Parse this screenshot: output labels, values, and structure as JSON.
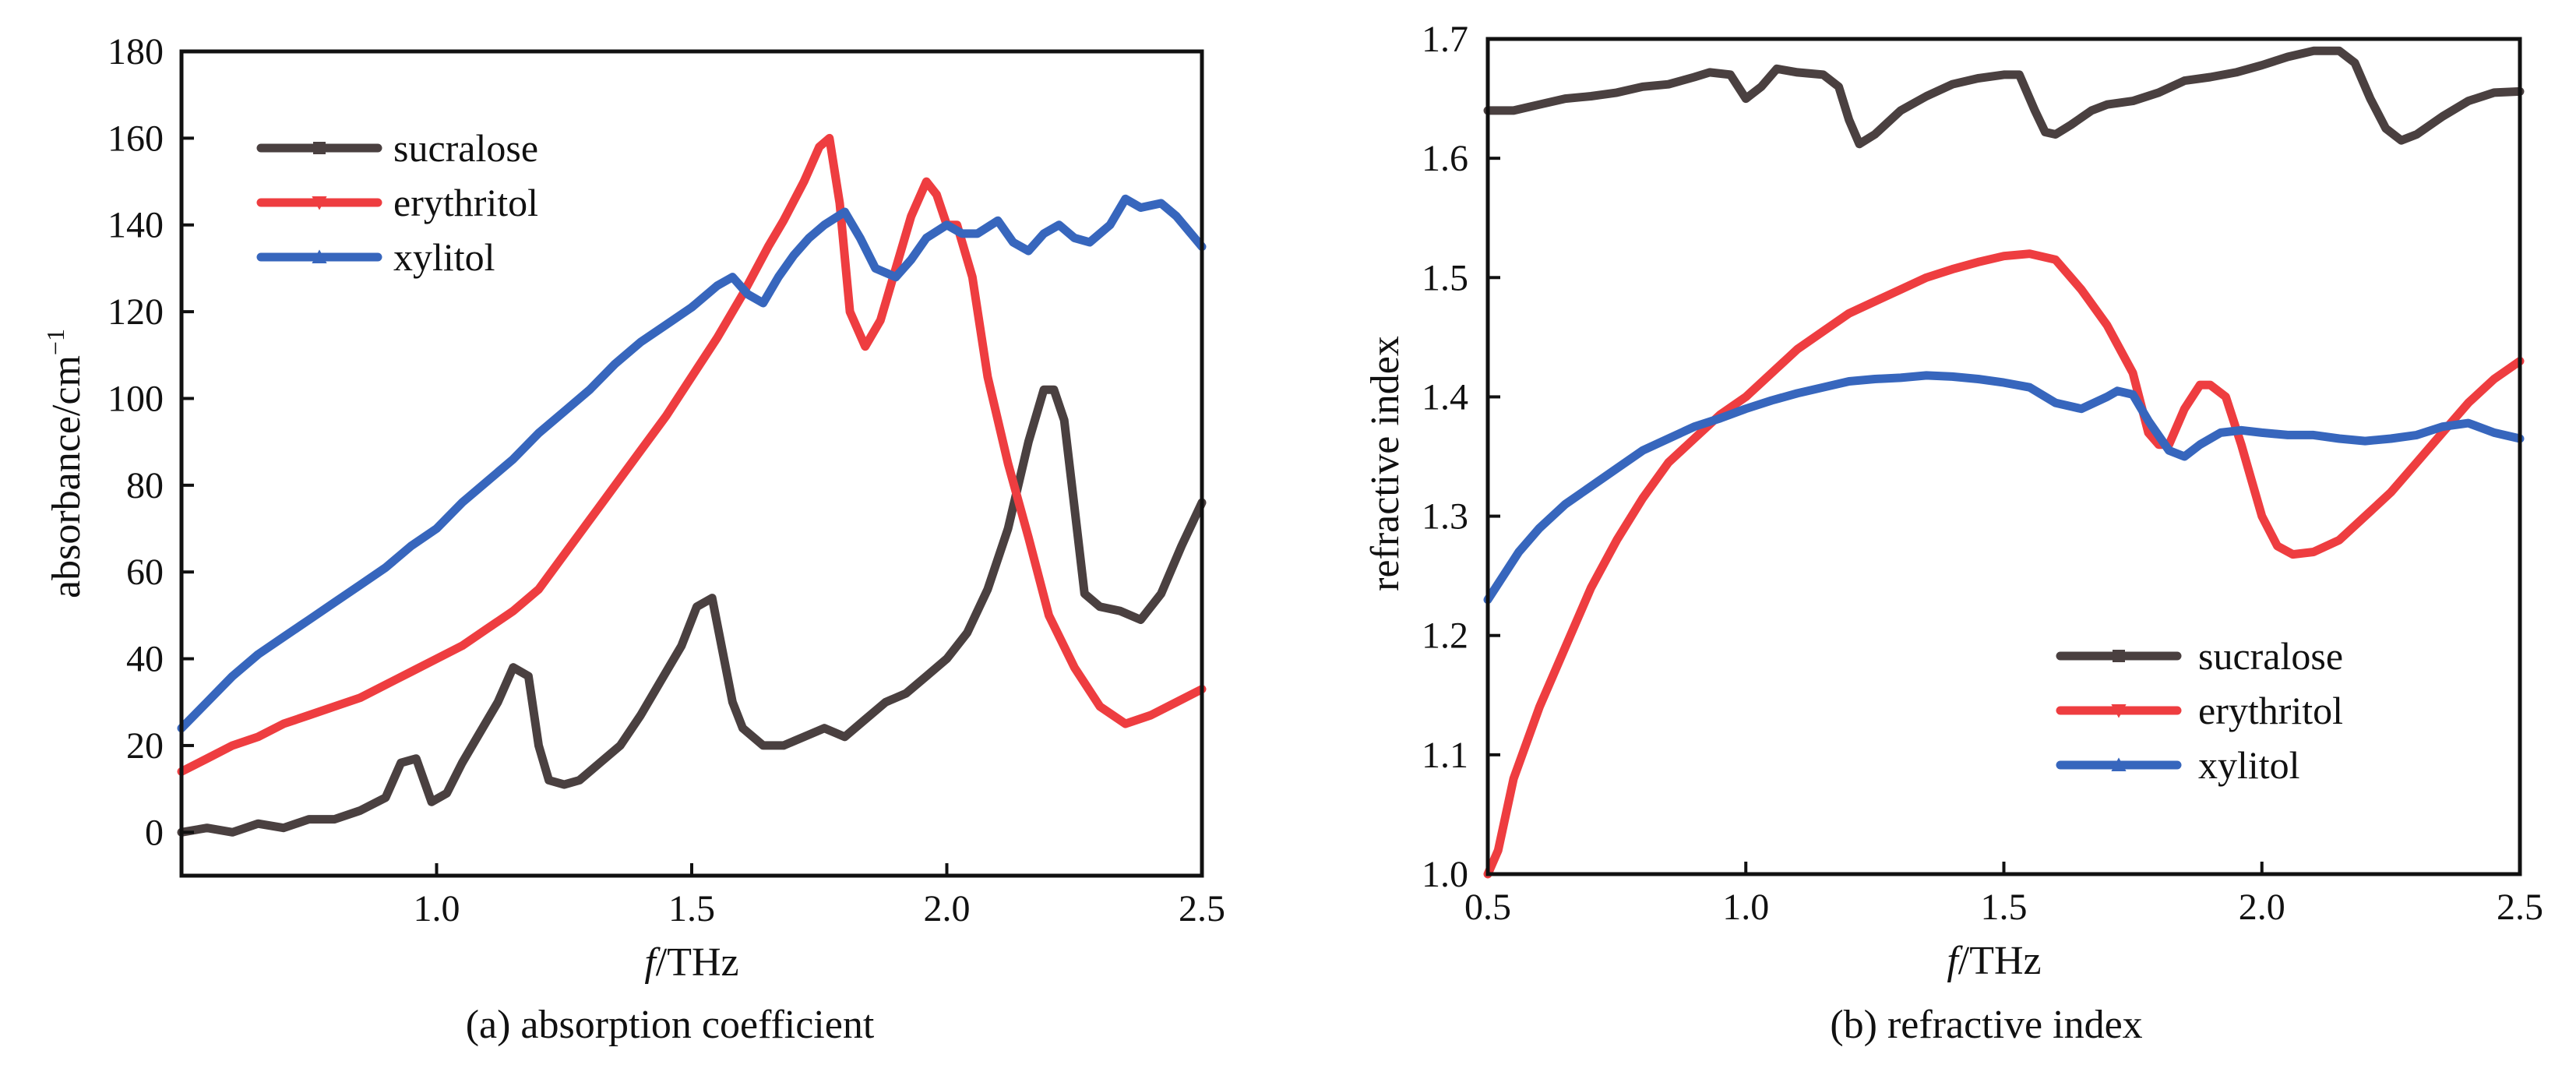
{
  "chart_data": [
    {
      "type": "line",
      "caption": "(a) absorption coefficient",
      "xlabel_italic": "f",
      "xlabel_rest": "/THz",
      "ylabel": "absorbance/cm",
      "ylabel_sup": "−1",
      "xlim": [
        0.5,
        2.5
      ],
      "ylim": [
        -10,
        180
      ],
      "xticks": [
        1.0,
        1.5,
        2.0,
        2.5
      ],
      "xtick_labels": [
        "1.0",
        "1.5",
        "2.0",
        "2.5"
      ],
      "yticks": [
        0,
        20,
        40,
        60,
        80,
        100,
        120,
        140,
        160,
        180
      ],
      "ytick_labels": [
        "0",
        "20",
        "40",
        "60",
        "80",
        "100",
        "120",
        "140",
        "160",
        "180"
      ],
      "legend_position": "top-left",
      "series": [
        {
          "name": "sucralose",
          "color": "#4a4040",
          "marker": "square",
          "x": [
            0.5,
            0.55,
            0.6,
            0.65,
            0.7,
            0.75,
            0.8,
            0.85,
            0.9,
            0.93,
            0.96,
            0.99,
            1.02,
            1.05,
            1.08,
            1.12,
            1.15,
            1.18,
            1.2,
            1.22,
            1.25,
            1.28,
            1.32,
            1.36,
            1.4,
            1.44,
            1.48,
            1.51,
            1.54,
            1.56,
            1.58,
            1.6,
            1.64,
            1.68,
            1.72,
            1.76,
            1.8,
            1.84,
            1.88,
            1.92,
            1.96,
            2.0,
            2.04,
            2.08,
            2.12,
            2.16,
            2.19,
            2.21,
            2.23,
            2.25,
            2.27,
            2.3,
            2.34,
            2.38,
            2.42,
            2.46,
            2.5
          ],
          "y": [
            0,
            1,
            0,
            2,
            1,
            3,
            3,
            5,
            8,
            16,
            17,
            7,
            9,
            16,
            22,
            30,
            38,
            36,
            20,
            12,
            11,
            12,
            16,
            20,
            27,
            35,
            43,
            52,
            54,
            42,
            30,
            24,
            20,
            20,
            22,
            24,
            22,
            26,
            30,
            32,
            36,
            40,
            46,
            56,
            70,
            90,
            102,
            102,
            95,
            75,
            55,
            52,
            51,
            49,
            55,
            66,
            76
          ]
        },
        {
          "name": "erythritol",
          "color": "#ee3d40",
          "marker": "triangle-down",
          "x": [
            0.5,
            0.55,
            0.6,
            0.65,
            0.7,
            0.75,
            0.8,
            0.85,
            0.9,
            0.95,
            1.0,
            1.05,
            1.1,
            1.15,
            1.2,
            1.25,
            1.3,
            1.35,
            1.4,
            1.45,
            1.5,
            1.55,
            1.6,
            1.65,
            1.68,
            1.72,
            1.75,
            1.77,
            1.79,
            1.81,
            1.84,
            1.87,
            1.9,
            1.93,
            1.96,
            1.98,
            2.0,
            2.02,
            2.05,
            2.08,
            2.12,
            2.16,
            2.2,
            2.25,
            2.3,
            2.35,
            2.4,
            2.45,
            2.5
          ],
          "y": [
            14,
            17,
            20,
            22,
            25,
            27,
            29,
            31,
            34,
            37,
            40,
            43,
            47,
            51,
            56,
            64,
            72,
            80,
            88,
            96,
            105,
            114,
            124,
            135,
            141,
            150,
            158,
            160,
            145,
            120,
            112,
            118,
            130,
            142,
            150,
            147,
            140,
            140,
            128,
            105,
            85,
            68,
            50,
            38,
            29,
            25,
            27,
            30,
            33
          ]
        },
        {
          "name": "xylitol",
          "color": "#3766bd",
          "marker": "triangle-up",
          "x": [
            0.5,
            0.55,
            0.6,
            0.65,
            0.7,
            0.75,
            0.8,
            0.85,
            0.9,
            0.95,
            1.0,
            1.05,
            1.1,
            1.15,
            1.2,
            1.25,
            1.3,
            1.35,
            1.4,
            1.45,
            1.5,
            1.55,
            1.58,
            1.61,
            1.64,
            1.67,
            1.7,
            1.73,
            1.76,
            1.8,
            1.83,
            1.86,
            1.9,
            1.93,
            1.96,
            2.0,
            2.03,
            2.06,
            2.1,
            2.13,
            2.16,
            2.19,
            2.22,
            2.25,
            2.28,
            2.32,
            2.35,
            2.38,
            2.42,
            2.45,
            2.5
          ],
          "y": [
            24,
            30,
            36,
            41,
            45,
            49,
            53,
            57,
            61,
            66,
            70,
            76,
            81,
            86,
            92,
            97,
            102,
            108,
            113,
            117,
            121,
            126,
            128,
            124,
            122,
            128,
            133,
            137,
            140,
            143,
            137,
            130,
            128,
            132,
            137,
            140,
            138,
            138,
            141,
            136,
            134,
            138,
            140,
            137,
            136,
            140,
            146,
            144,
            145,
            142,
            135
          ]
        }
      ]
    },
    {
      "type": "line",
      "caption": "(b) refractive index",
      "xlabel_italic": "f",
      "xlabel_rest": "/THz",
      "ylabel": "refractive index",
      "xlim": [
        0.5,
        2.5
      ],
      "ylim": [
        1.0,
        1.7
      ],
      "xticks": [
        0.5,
        1.0,
        1.5,
        2.0,
        2.5
      ],
      "xtick_labels": [
        "0.5",
        "1.0",
        "1.5",
        "2.0",
        "2.5"
      ],
      "yticks": [
        1.0,
        1.1,
        1.2,
        1.3,
        1.4,
        1.5,
        1.6,
        1.7
      ],
      "ytick_labels": [
        "1.0",
        "1.1",
        "1.2",
        "1.3",
        "1.4",
        "1.5",
        "1.6",
        "1.7"
      ],
      "legend_position": "bottom-right",
      "series": [
        {
          "name": "sucralose",
          "color": "#4a4040",
          "marker": "square",
          "x": [
            0.5,
            0.55,
            0.6,
            0.65,
            0.7,
            0.75,
            0.8,
            0.85,
            0.9,
            0.93,
            0.97,
            1.0,
            1.03,
            1.06,
            1.1,
            1.15,
            1.18,
            1.2,
            1.22,
            1.25,
            1.3,
            1.35,
            1.4,
            1.45,
            1.5,
            1.53,
            1.56,
            1.58,
            1.6,
            1.63,
            1.67,
            1.7,
            1.75,
            1.8,
            1.85,
            1.9,
            1.95,
            2.0,
            2.05,
            2.1,
            2.15,
            2.18,
            2.21,
            2.24,
            2.27,
            2.3,
            2.35,
            2.4,
            2.45,
            2.5
          ],
          "y": [
            1.64,
            1.64,
            1.645,
            1.65,
            1.652,
            1.655,
            1.66,
            1.662,
            1.668,
            1.672,
            1.67,
            1.65,
            1.66,
            1.675,
            1.672,
            1.67,
            1.66,
            1.632,
            1.612,
            1.62,
            1.64,
            1.652,
            1.662,
            1.667,
            1.67,
            1.67,
            1.64,
            1.622,
            1.62,
            1.628,
            1.64,
            1.645,
            1.648,
            1.655,
            1.665,
            1.668,
            1.672,
            1.678,
            1.685,
            1.69,
            1.69,
            1.68,
            1.65,
            1.625,
            1.615,
            1.62,
            1.635,
            1.648,
            1.655,
            1.656
          ]
        },
        {
          "name": "erythritol",
          "color": "#ee3d40",
          "marker": "triangle-down",
          "x": [
            0.5,
            0.52,
            0.55,
            0.6,
            0.65,
            0.7,
            0.75,
            0.8,
            0.85,
            0.9,
            0.95,
            1.0,
            1.05,
            1.1,
            1.15,
            1.2,
            1.25,
            1.3,
            1.35,
            1.4,
            1.45,
            1.5,
            1.55,
            1.6,
            1.65,
            1.7,
            1.75,
            1.78,
            1.8,
            1.82,
            1.85,
            1.88,
            1.9,
            1.93,
            1.96,
            1.98,
            2.0,
            2.03,
            2.06,
            2.1,
            2.15,
            2.2,
            2.25,
            2.3,
            2.35,
            2.4,
            2.45,
            2.5
          ],
          "y": [
            1.0,
            1.02,
            1.08,
            1.14,
            1.19,
            1.24,
            1.28,
            1.315,
            1.345,
            1.365,
            1.385,
            1.4,
            1.42,
            1.44,
            1.455,
            1.47,
            1.48,
            1.49,
            1.5,
            1.507,
            1.513,
            1.518,
            1.52,
            1.515,
            1.49,
            1.46,
            1.42,
            1.37,
            1.36,
            1.36,
            1.39,
            1.41,
            1.41,
            1.4,
            1.36,
            1.33,
            1.3,
            1.275,
            1.268,
            1.27,
            1.28,
            1.3,
            1.32,
            1.345,
            1.37,
            1.395,
            1.415,
            1.43
          ]
        },
        {
          "name": "xylitol",
          "color": "#3766bd",
          "marker": "triangle-up",
          "x": [
            0.5,
            0.53,
            0.56,
            0.6,
            0.65,
            0.7,
            0.75,
            0.8,
            0.85,
            0.9,
            0.95,
            1.0,
            1.05,
            1.1,
            1.15,
            1.2,
            1.25,
            1.3,
            1.35,
            1.4,
            1.45,
            1.5,
            1.55,
            1.6,
            1.65,
            1.7,
            1.72,
            1.75,
            1.78,
            1.82,
            1.85,
            1.88,
            1.92,
            1.96,
            2.0,
            2.05,
            2.1,
            2.15,
            2.2,
            2.25,
            2.3,
            2.35,
            2.4,
            2.45,
            2.5
          ],
          "y": [
            1.23,
            1.25,
            1.27,
            1.29,
            1.31,
            1.325,
            1.34,
            1.355,
            1.365,
            1.375,
            1.382,
            1.39,
            1.397,
            1.403,
            1.408,
            1.413,
            1.415,
            1.416,
            1.418,
            1.417,
            1.415,
            1.412,
            1.408,
            1.395,
            1.39,
            1.4,
            1.405,
            1.402,
            1.38,
            1.355,
            1.35,
            1.36,
            1.37,
            1.372,
            1.37,
            1.368,
            1.368,
            1.365,
            1.363,
            1.365,
            1.368,
            1.375,
            1.378,
            1.37,
            1.365
          ]
        }
      ]
    }
  ]
}
